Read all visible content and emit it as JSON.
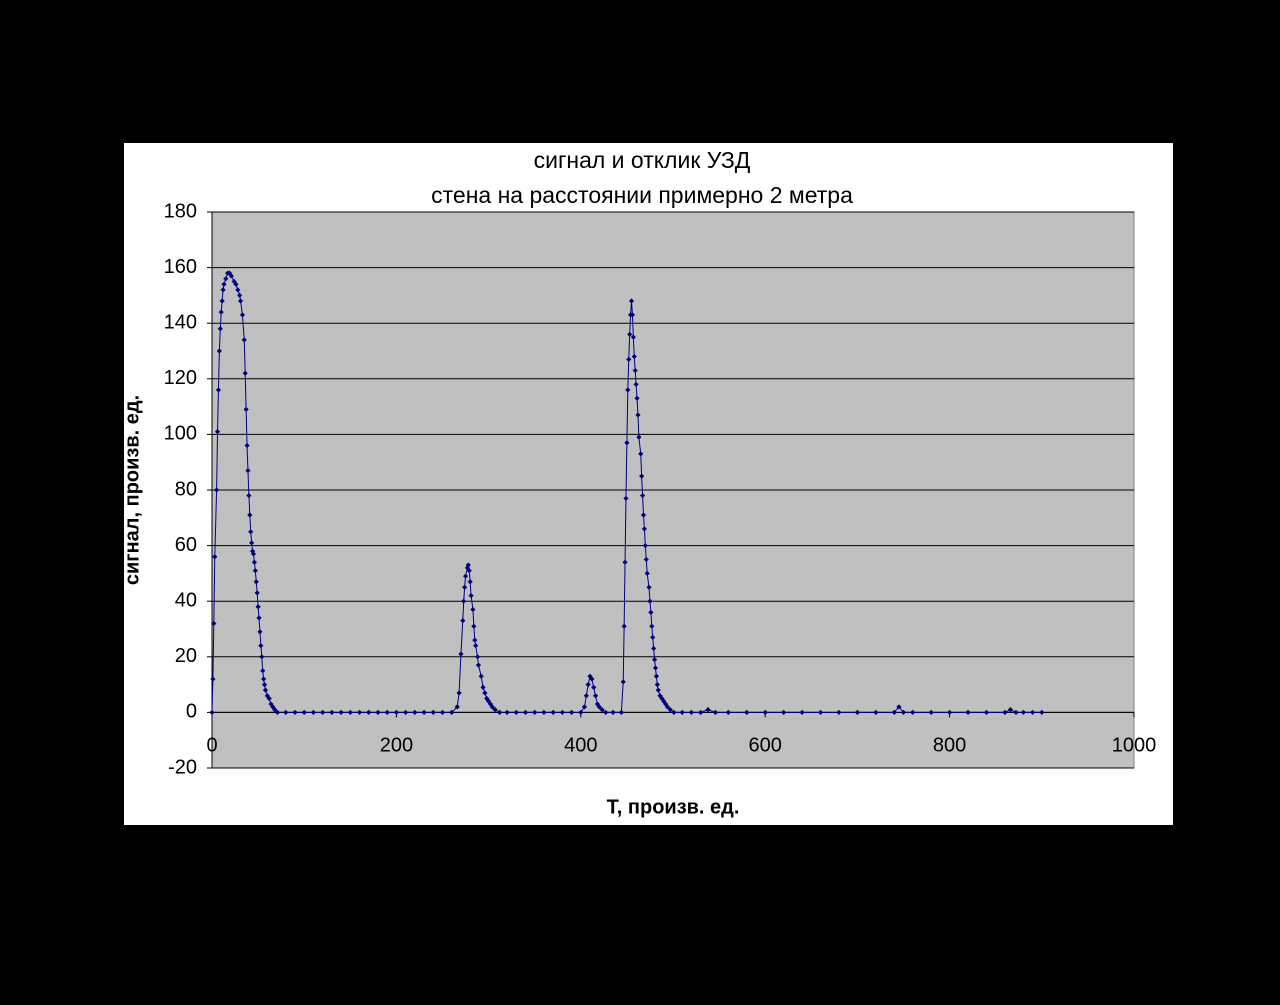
{
  "chart_data": {
    "type": "scatter-line",
    "title": "сигнал и отклик УЗД",
    "subtitle": "стена на расстоянии примерно 2 метра",
    "x_label": "Т, произв. ед.",
    "y_label": "сигнал, произв. ед.",
    "xlim": [
      0,
      1000
    ],
    "xticks": [
      0,
      200,
      400,
      600,
      800,
      1000
    ],
    "ylim": [
      -20,
      180
    ],
    "yticks": [
      -20,
      0,
      20,
      40,
      60,
      80,
      100,
      120,
      140,
      160,
      180
    ],
    "grid": true,
    "plot_background": "#c0c0c0",
    "series": [
      {
        "color": "#000080",
        "x": [
          0,
          1,
          2,
          3,
          5,
          6,
          7,
          8,
          9,
          10,
          11,
          12,
          13,
          15,
          17,
          19,
          21,
          24,
          26,
          28,
          30,
          31,
          33,
          35,
          36,
          37,
          38,
          39,
          40,
          41,
          42,
          43,
          44,
          45,
          46,
          47,
          48,
          49,
          50,
          51,
          52,
          53,
          54,
          55,
          56,
          57,
          58,
          60,
          62,
          64,
          66,
          68,
          71,
          80,
          90,
          100,
          110,
          120,
          130,
          140,
          150,
          160,
          170,
          180,
          190,
          200,
          210,
          220,
          230,
          240,
          250,
          260,
          266,
          268,
          270,
          272,
          273,
          274,
          275,
          277,
          278,
          279,
          280,
          281,
          283,
          284,
          285,
          286,
          288,
          289,
          292,
          294,
          296,
          298,
          300,
          302,
          304,
          307,
          312,
          320,
          330,
          340,
          350,
          360,
          370,
          380,
          390,
          400,
          404,
          406,
          408,
          410,
          412,
          414,
          416,
          418,
          420,
          423,
          427,
          435,
          444,
          446,
          447,
          448,
          449,
          450,
          451,
          452,
          453,
          454,
          455,
          456,
          457,
          458,
          459,
          460,
          461,
          462,
          463,
          465,
          466,
          467,
          468,
          469,
          470,
          471,
          472,
          474,
          475,
          476,
          477,
          478,
          479,
          480,
          481,
          482,
          483,
          484,
          486,
          488,
          490,
          492,
          494,
          497,
          501,
          510,
          520,
          530,
          538,
          546,
          560,
          580,
          600,
          620,
          640,
          660,
          680,
          700,
          720,
          740,
          745,
          750,
          760,
          780,
          800,
          820,
          840,
          860,
          866,
          872,
          880,
          890,
          900
        ],
        "values": [
          0,
          12,
          32,
          56,
          80,
          101,
          116,
          130,
          138,
          144,
          148,
          152,
          154,
          156,
          158,
          158,
          157,
          155,
          154,
          152,
          150,
          148,
          143,
          134,
          122,
          109,
          96,
          87,
          78,
          71,
          65,
          61,
          58,
          57,
          54,
          51,
          47,
          43,
          38,
          34,
          29,
          24,
          20,
          15,
          12,
          10,
          8,
          6,
          5,
          3,
          2,
          1,
          0,
          0,
          0,
          0,
          0,
          0,
          0,
          0,
          0,
          0,
          0,
          0,
          0,
          0,
          0,
          0,
          0,
          0,
          0,
          0,
          2,
          7,
          21,
          33,
          40,
          45,
          49,
          52,
          53,
          51,
          47,
          42,
          37,
          31,
          26,
          24,
          20,
          17,
          13,
          9,
          7,
          5,
          4,
          3,
          2,
          1,
          0,
          0,
          0,
          0,
          0,
          0,
          0,
          0,
          0,
          0,
          2,
          6,
          10,
          13,
          12,
          9,
          6,
          3,
          2,
          1,
          0,
          0,
          0,
          11,
          31,
          54,
          77,
          97,
          116,
          127,
          136,
          143,
          148,
          143,
          135,
          128,
          123,
          118,
          113,
          107,
          99,
          93,
          85,
          78,
          71,
          66,
          60,
          55,
          50,
          45,
          40,
          36,
          31,
          27,
          23,
          19,
          16,
          13,
          10,
          8,
          6,
          5,
          4,
          3,
          2,
          1,
          0,
          0,
          0,
          0,
          1,
          0,
          0,
          0,
          0,
          0,
          0,
          0,
          0,
          0,
          0,
          0,
          2,
          0,
          0,
          0,
          0,
          0,
          0,
          0,
          1,
          0,
          0,
          0,
          0
        ]
      }
    ]
  }
}
